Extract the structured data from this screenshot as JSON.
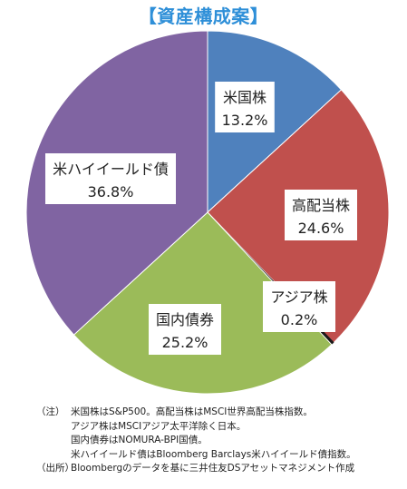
{
  "title": "【資産構成案】",
  "colors": {
    "title": "#2e8fd8",
    "label_text": "#222222",
    "label_box_bg": "#ffffff"
  },
  "chart_data": {
    "type": "pie",
    "title": "【資産構成案】",
    "start_angle_deg": 0,
    "direction": "clockwise",
    "slices": [
      {
        "name": "米国株",
        "value": 13.2,
        "label": "13.2%",
        "color": "#4f81bd"
      },
      {
        "name": "高配当株",
        "value": 24.6,
        "label": "24.6%",
        "color": "#c0504d"
      },
      {
        "name": "アジア株",
        "value": 0.2,
        "label": "0.2%",
        "color": "#1a1a1a"
      },
      {
        "name": "国内債券",
        "value": 25.2,
        "label": "25.2%",
        "color": "#9bbb59"
      },
      {
        "name": "米ハイイールド債",
        "value": 36.8,
        "label": "36.8%",
        "color": "#8064a2"
      }
    ]
  },
  "notes": [
    {
      "lead": "（注）",
      "text": "米国株はS&P500。高配当株はMSCI世界高配当株指数。"
    },
    {
      "lead": "",
      "text": "アジア株はMSCIアジア太平洋除く日本。"
    },
    {
      "lead": "",
      "text": "国内債券はNOMURA-BPI国債。"
    },
    {
      "lead": "",
      "text": "米ハイイールド債はBloomberg Barclays米ハイイールド債指数。"
    },
    {
      "lead": "（出所）",
      "text": "Bloombergのデータを基に三井住友DSアセットマネジメント作成"
    }
  ]
}
